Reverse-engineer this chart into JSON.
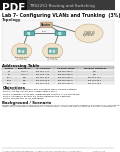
{
  "title_course": "TRS2251 Routing and Switching",
  "title_lab": "Lab 7- Configuring VLANs and Trunking  (3%)",
  "section_topology": "Topology",
  "section_addressing": "Addressing Table",
  "table_headers": [
    "Device",
    "Interfaces",
    "IP Address",
    "Subnet Mask",
    "Default Gateway"
  ],
  "table_rows": [
    [
      "S1",
      "Vlan 1",
      "192.168.1.11",
      "255.255.255.0",
      "N/A"
    ],
    [
      "S2",
      "Vlan 1",
      "192.168.1.12",
      "255.255.255.0",
      "N/A"
    ],
    [
      "PC-A",
      "NIC",
      "192.168.10.3",
      "255.255.255.0",
      "192.168.10.1"
    ],
    [
      "PC-B",
      "NIC",
      "192.168.20.3",
      "255.255.255.0",
      "192.168.20.1"
    ],
    [
      "PC-C",
      "NIC",
      "192.168.10.4",
      "255.255.255.0",
      "192.168.10.1"
    ]
  ],
  "section_objectives": "Objectives",
  "objectives": [
    "Part 1: Build the Network and Configure Basic Device Settings",
    "Part 2: Create VLANs and Assign Switch Ports",
    "Part 3: Maintain VLAN Port Assignments and the VLAN Database",
    "Part 4: Configure an 802.1Q Trunk between the Switches",
    "Part 5: Delete the VLAN Database"
  ],
  "section_background": "Background / Scenario",
  "background_text": "Modern switches use virtual local area networks (VLANs) to improve network performance by separating large Layer 2 broadcast domains into smaller ones. VLANs can also be used as a security measure by",
  "footer": "© 2013 Cisco and/or its affiliates. All rights reserved. This document is Cisco Public.                  Page 1 of 10",
  "pdf_label": "PDF",
  "bg_color": "#ffffff",
  "pdf_bg": "#111111",
  "pdf_text": "#ffffff",
  "header_bg": "#3a3a3a",
  "header_text": "#cccccc",
  "switch_color": "#5aafaa",
  "switch_edge": "#2e8080",
  "pc_color": "#7fb8b0",
  "pc_edge": "#4a8880",
  "router_color": "#d4b896",
  "router_edge": "#b09070",
  "cloud_color": "#f0e4cc",
  "cloud_edge": "#c8aa80",
  "table_header_bg": "#c8c8c8",
  "table_row0_bg": "#f0f0f0",
  "table_row1_bg": "#e4e4e4",
  "obj_color": "#111111",
  "bg_text_color": "#333333"
}
